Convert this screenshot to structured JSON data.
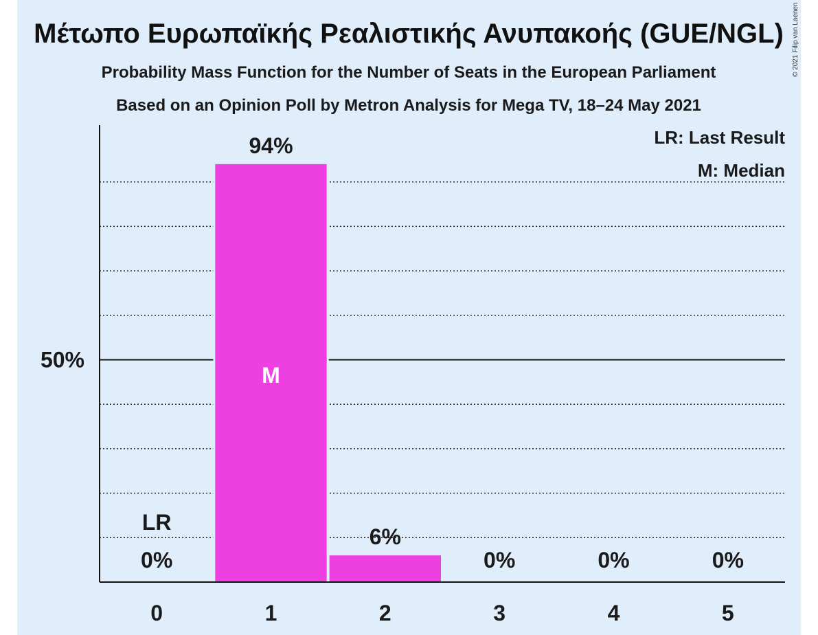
{
  "chart_data": {
    "type": "bar",
    "title": "Μέτωπο Ευρωπαϊκής Ρεαλιστικής Ανυπακοής (GUE/NGL)",
    "subtitle_1": "Probability Mass Function for the Number of Seats in the European Parliament",
    "subtitle_2": "Based on an Opinion Poll by Metron Analysis for Mega TV, 18–24 May 2021",
    "categories": [
      "0",
      "1",
      "2",
      "3",
      "4",
      "5"
    ],
    "values": [
      0,
      94,
      6,
      0,
      0,
      0
    ],
    "value_labels": [
      "0%",
      "94%",
      "6%",
      "0%",
      "0%",
      "0%"
    ],
    "ylim": [
      0,
      100
    ],
    "y_tick_label": "50%",
    "y_tick_value": 50,
    "gridlines": [
      10,
      20,
      30,
      40,
      60,
      70,
      80,
      90
    ],
    "bar_color": "#ee3fe0",
    "last_result": {
      "category": "0",
      "label": "LR"
    },
    "median": {
      "category": "1",
      "label": "M"
    },
    "legend": {
      "position": "top-right",
      "entries": [
        "LR: Last Result",
        "M: Median"
      ]
    },
    "copyright": "© 2021 Filip van Laenen"
  }
}
